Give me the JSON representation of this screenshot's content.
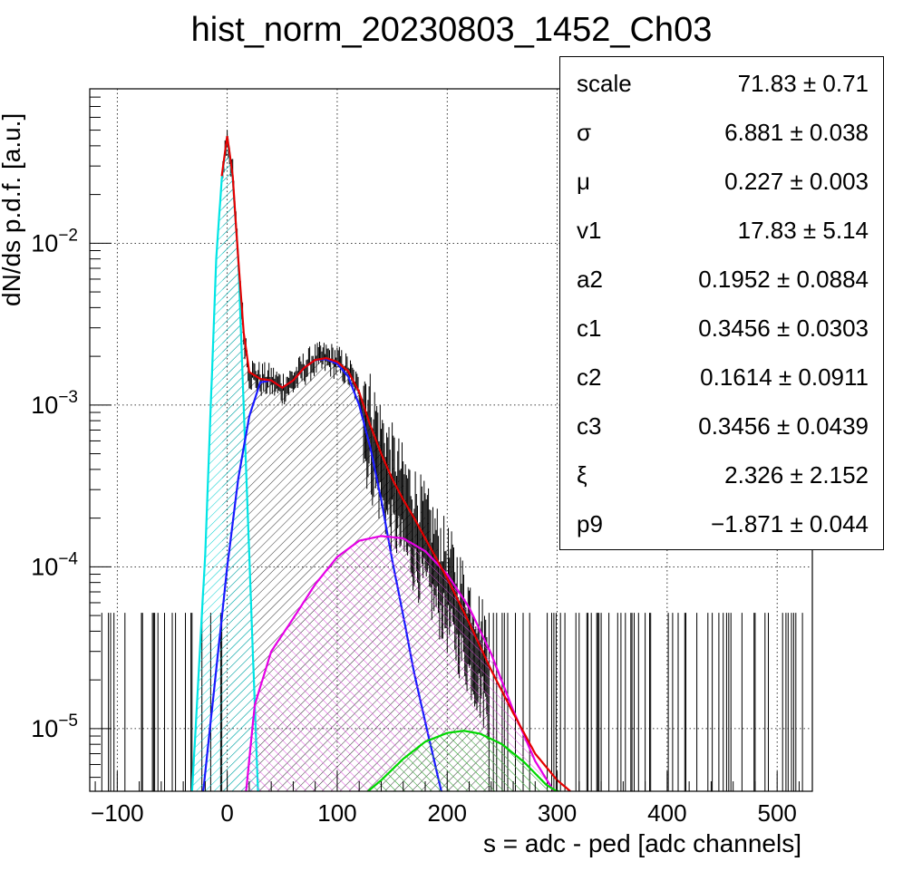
{
  "chart_data": {
    "type": "histogram-with-fits",
    "title": "hist_norm_20230803_1452_Ch03",
    "xlabel": "s = adc - ped [adc channels]",
    "ylabel": "dN/ds p.d.f. [a.u.]",
    "xlim": [
      -125,
      532
    ],
    "ylim": [
      4.1e-06,
      0.09
    ],
    "y_scale": "log",
    "grid": true,
    "x_ticks": [
      -100,
      0,
      100,
      200,
      300,
      400,
      500
    ],
    "x_tick_labels": [
      "−100",
      "0",
      "100",
      "200",
      "300",
      "400",
      "500"
    ],
    "y_ticks": [
      1e-05,
      0.0001,
      0.001,
      0.01
    ],
    "y_tick_labels": [
      {
        "base": "10",
        "exp": "−5"
      },
      {
        "base": "10",
        "exp": "−4"
      },
      {
        "base": "10",
        "exp": "−3"
      },
      {
        "base": "10",
        "exp": "−2"
      }
    ],
    "stats_box": [
      {
        "name": "scale",
        "value": "71.83 ± 0.71"
      },
      {
        "name": "σ",
        "value": "6.881 ± 0.038"
      },
      {
        "name": "μ",
        "value": "0.227 ± 0.003"
      },
      {
        "name": "v1",
        "value": "17.83 ± 5.14"
      },
      {
        "name": "a2",
        "value": "0.1952 ± 0.0884"
      },
      {
        "name": "c1",
        "value": "0.3456 ± 0.0303"
      },
      {
        "name": "c2",
        "value": "0.1614 ± 0.0911"
      },
      {
        "name": "c3",
        "value": "0.3456 ± 0.0439"
      },
      {
        "name": "ξ",
        "value": "2.326 ± 2.152"
      },
      {
        "name": "p9",
        "value": "−1.871 ± 0.044"
      }
    ],
    "series": [
      {
        "color": "#00e5e5",
        "fill": "hatch",
        "kind": "gaussian",
        "x": [
          -32,
          -20,
          -10,
          -5,
          0,
          5,
          10,
          20,
          28
        ],
        "y": [
          4e-06,
          0.00012,
          0.008,
          0.025,
          0.046,
          0.025,
          0.008,
          0.00012,
          4e-06
        ]
      },
      {
        "color": "#1a1aff",
        "fill": "hatch",
        "kind": "1 p.e.",
        "x": [
          -22,
          0,
          10,
          20,
          30,
          40,
          50,
          60,
          70,
          80,
          90,
          100,
          110,
          120,
          130,
          140,
          150,
          160,
          170,
          180,
          195
        ],
        "y": [
          4e-06,
          0.0001,
          0.00035,
          0.00085,
          0.00138,
          0.00142,
          0.00128,
          0.00142,
          0.0017,
          0.0019,
          0.00192,
          0.0018,
          0.0015,
          0.001,
          0.00055,
          0.00026,
          0.00011,
          5e-05,
          2.2e-05,
          1.1e-05,
          4e-06
        ]
      },
      {
        "color": "#e500e5",
        "fill": "hatch",
        "kind": "2 p.e.",
        "x": [
          17,
          25,
          40,
          60,
          80,
          100,
          120,
          140,
          160,
          180,
          200,
          220,
          240,
          260,
          280,
          298
        ],
        "y": [
          4e-06,
          1.4e-05,
          3e-05,
          4.8e-05,
          7.8e-05,
          0.000115,
          0.000145,
          0.000155,
          0.00015,
          0.000125,
          9e-05,
          5.6e-05,
          2.9e-05,
          1.3e-05,
          6.3e-06,
          4e-06
        ]
      },
      {
        "color": "#00d800",
        "fill": "hatch",
        "kind": "3 p.e.",
        "x": [
          128,
          140,
          160,
          180,
          200,
          215,
          230,
          250,
          270,
          290,
          302
        ],
        "y": [
          4.1e-06,
          4.8e-06,
          6.5e-06,
          8.3e-06,
          9.4e-06,
          9.7e-06,
          9.3e-06,
          8e-06,
          6.2e-06,
          4.5e-06,
          4e-06
        ]
      },
      {
        "color": "#e50000",
        "fill": "none",
        "kind": "total",
        "x": [
          -5,
          0,
          5,
          10,
          15,
          20,
          30,
          40,
          50,
          60,
          70,
          80,
          90,
          100,
          110,
          120,
          130,
          140,
          150,
          160,
          170,
          180,
          200,
          220,
          240,
          260,
          280,
          300,
          312
        ],
        "y": [
          0.026,
          0.046,
          0.026,
          0.008,
          0.0028,
          0.0016,
          0.00145,
          0.00142,
          0.00128,
          0.00142,
          0.0017,
          0.0019,
          0.00195,
          0.00185,
          0.00162,
          0.0012,
          0.00075,
          0.0005,
          0.00035,
          0.00026,
          0.0002,
          0.00015,
          8.5e-05,
          4.5e-05,
          2.3e-05,
          1.25e-05,
          7e-06,
          4.8e-06,
          4.1e-06
        ]
      }
    ]
  }
}
